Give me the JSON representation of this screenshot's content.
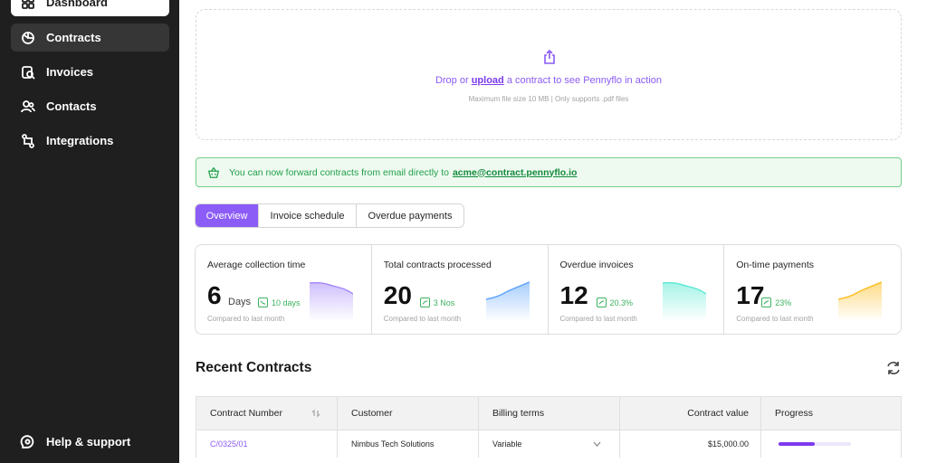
{
  "sidebar": {
    "items": [
      {
        "label": "Dashboard",
        "icon": "dashboard-icon"
      },
      {
        "label": "Contracts",
        "icon": "contracts-icon"
      },
      {
        "label": "Invoices",
        "icon": "invoices-icon"
      },
      {
        "label": "Contacts",
        "icon": "contacts-icon"
      },
      {
        "label": "Integrations",
        "icon": "integrations-icon"
      }
    ],
    "help": {
      "label": "Help & support",
      "icon": "help-icon"
    }
  },
  "upload": {
    "prefix": "Drop or",
    "link": "upload",
    "suffix": "a contract to see Pennyflo in action",
    "hint": "Maximum file size 10 MB | Only supports .pdf files"
  },
  "banner": {
    "text": "You can now forward contracts from email directly to",
    "email": "acme@contract.pennyflo.io"
  },
  "tabs": [
    {
      "label": "Overview",
      "active": true
    },
    {
      "label": "Invoice schedule",
      "active": false
    },
    {
      "label": "Overdue payments",
      "active": false
    }
  ],
  "stats": [
    {
      "label": "Average collection time",
      "value": "6",
      "unit": "Days",
      "delta": "10 days",
      "compare": "Compared to last month",
      "color": "#a78bfa",
      "trend": "down"
    },
    {
      "label": "Total contracts processed",
      "value": "20",
      "unit": "",
      "delta": "3 Nos",
      "compare": "Compared to last month",
      "color": "#60a5fa",
      "trend": "up"
    },
    {
      "label": "Overdue invoices",
      "value": "12",
      "unit": "",
      "delta": "20.3%",
      "compare": "Compared to last month",
      "color": "#5eead4",
      "trend": "down"
    },
    {
      "label": "On-time payments",
      "value": "17",
      "unit": "",
      "delta": "23%",
      "compare": "Compared to last month",
      "color": "#fbbf24",
      "trend": "up"
    }
  ],
  "recent": {
    "title": "Recent Contracts",
    "columns": [
      "Contract Number",
      "Customer",
      "Billing terms",
      "Contract value",
      "Progress"
    ],
    "rows": [
      {
        "number": "C/0325/01",
        "customer": "Nimbus Tech Solutions",
        "billing": "Variable",
        "value": "$15,000.00",
        "progress": 0.5
      }
    ]
  },
  "colors": {
    "accent": "#8b5cf6",
    "success": "#22a04b",
    "sidebar": "#1f1f1f"
  }
}
